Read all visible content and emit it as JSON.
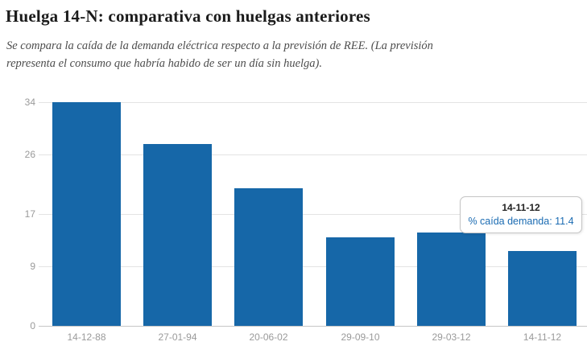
{
  "header": {
    "title": "Huelga 14-N: comparativa con huelgas anteriores",
    "subtitle": "Se compara la caída de la demanda eléctrica respecto a la previsión de REE. (La previsión representa el consumo que habría habido de ser un día sin huelga)."
  },
  "chart_data": {
    "type": "bar",
    "title": "Huelga 14-N: comparativa con huelgas anteriores",
    "series_name": "% caída demanda",
    "categories": [
      "14-12-88",
      "27-01-94",
      "20-06-02",
      "29-09-10",
      "29-03-12",
      "14-11-12"
    ],
    "values": [
      34,
      27.7,
      20.9,
      13.5,
      14.2,
      11.4
    ],
    "ylim": [
      0,
      34
    ],
    "yticks": [
      0,
      9,
      17,
      26,
      34
    ],
    "grid": true,
    "legend": "none",
    "tooltip": {
      "category": "14-11-12",
      "text": "% caída demanda: 11.4",
      "value": 11.4
    }
  },
  "colors": {
    "bar": "#1667a8",
    "grid": "#e3e3e3",
    "axis_line": "#c6c6c6",
    "axis_label": "#9a9a9a",
    "title": "#1b1b1b",
    "subtitle": "#4d4d4d",
    "tooltip_text": "#1a6bb2",
    "tooltip_border": "#c5c5c5"
  }
}
